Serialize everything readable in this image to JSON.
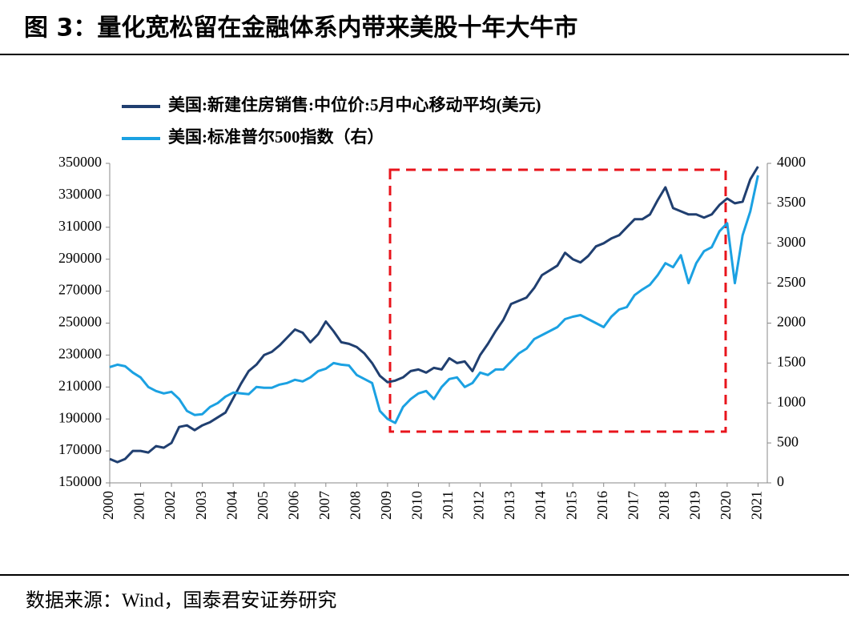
{
  "chart_data": {
    "type": "line",
    "title": "图 3：量化宽松留在金融体系内带来美股十年大牛市",
    "source": "数据来源：Wind，国泰君安证券研究",
    "x": [
      2000,
      2000.25,
      2000.5,
      2000.75,
      2001,
      2001.25,
      2001.5,
      2001.75,
      2002,
      2002.25,
      2002.5,
      2002.75,
      2003,
      2003.25,
      2003.5,
      2003.75,
      2004,
      2004.25,
      2004.5,
      2004.75,
      2005,
      2005.25,
      2005.5,
      2005.75,
      2006,
      2006.25,
      2006.5,
      2006.75,
      2007,
      2007.25,
      2007.5,
      2007.75,
      2008,
      2008.25,
      2008.5,
      2008.75,
      2009,
      2009.25,
      2009.5,
      2009.75,
      2010,
      2010.25,
      2010.5,
      2010.75,
      2011,
      2011.25,
      2011.5,
      2011.75,
      2012,
      2012.25,
      2012.5,
      2012.75,
      2013,
      2013.25,
      2013.5,
      2013.75,
      2014,
      2014.25,
      2014.5,
      2014.75,
      2015,
      2015.25,
      2015.5,
      2015.75,
      2016,
      2016.25,
      2016.5,
      2016.75,
      2017,
      2017.25,
      2017.5,
      2017.75,
      2018,
      2018.25,
      2018.5,
      2018.75,
      2019,
      2019.25,
      2019.5,
      2019.75,
      2020,
      2020.25,
      2020.5,
      2020.75,
      2021
    ],
    "series": [
      {
        "name": "美国:新建住房销售:中位价:5月中心移动平均(美元)",
        "color": "#203f70",
        "values": [
          165000,
          163000,
          165000,
          170000,
          170000,
          169000,
          173000,
          172000,
          175000,
          185000,
          186000,
          183000,
          186000,
          188000,
          191000,
          194000,
          203000,
          212000,
          220000,
          224000,
          230000,
          232000,
          236000,
          241000,
          246000,
          244000,
          238000,
          243000,
          251000,
          245000,
          238000,
          237000,
          235000,
          231000,
          225000,
          217000,
          213000,
          214000,
          216000,
          220000,
          221000,
          219000,
          222000,
          221000,
          228000,
          225000,
          226000,
          220000,
          230000,
          237000,
          245000,
          252000,
          262000,
          264000,
          266000,
          272000,
          280000,
          283000,
          286000,
          294000,
          290000,
          288000,
          292000,
          298000,
          300000,
          303000,
          305000,
          310000,
          315000,
          315000,
          318000,
          327000,
          335000,
          322000,
          320000,
          318000,
          318000,
          316000,
          318000,
          324000,
          328000,
          325000,
          326000,
          340000,
          348000
        ]
      },
      {
        "name": "美国:标准普尔500指数（右）",
        "color": "#1ba1e2",
        "axis": "y2",
        "values": [
          1450,
          1480,
          1460,
          1380,
          1320,
          1200,
          1150,
          1120,
          1140,
          1050,
          900,
          850,
          860,
          950,
          1000,
          1080,
          1130,
          1120,
          1110,
          1200,
          1190,
          1190,
          1230,
          1250,
          1290,
          1270,
          1320,
          1400,
          1430,
          1500,
          1480,
          1470,
          1350,
          1300,
          1250,
          900,
          800,
          750,
          950,
          1050,
          1120,
          1150,
          1050,
          1200,
          1300,
          1320,
          1200,
          1250,
          1380,
          1350,
          1420,
          1420,
          1520,
          1620,
          1680,
          1800,
          1850,
          1900,
          1950,
          2050,
          2080,
          2100,
          2050,
          2000,
          1950,
          2080,
          2170,
          2200,
          2350,
          2420,
          2480,
          2600,
          2750,
          2700,
          2850,
          2500,
          2750,
          2900,
          2950,
          3150,
          3250,
          2500,
          3100,
          3400,
          3850
        ]
      }
    ],
    "xlim": [
      2000,
      2021.3
    ],
    "xticks": [
      2000,
      2001,
      2002,
      2003,
      2004,
      2005,
      2006,
      2007,
      2008,
      2009,
      2010,
      2011,
      2012,
      2013,
      2014,
      2015,
      2016,
      2017,
      2018,
      2019,
      2020,
      2021
    ],
    "ylim": [
      150000,
      350000
    ],
    "yticks": [
      150000,
      170000,
      190000,
      210000,
      230000,
      250000,
      270000,
      290000,
      310000,
      330000,
      350000
    ],
    "y2lim": [
      0,
      4000
    ],
    "y2ticks": [
      0,
      500,
      1000,
      1500,
      2000,
      2500,
      3000,
      3500,
      4000
    ],
    "grid": false
  }
}
